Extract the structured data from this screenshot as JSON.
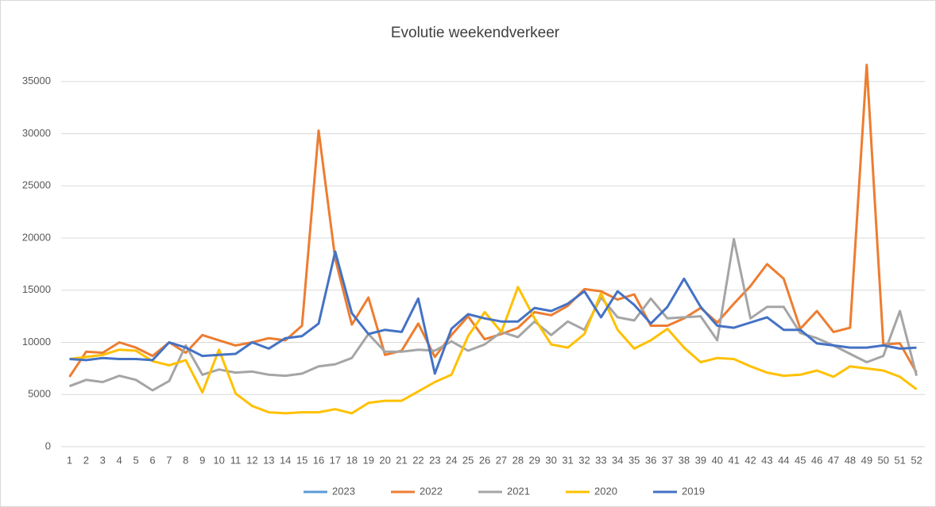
{
  "chart_data": {
    "type": "line",
    "title": "Evolutie weekendverkeer",
    "categories": [
      "1",
      "2",
      "3",
      "4",
      "5",
      "6",
      "7",
      "8",
      "9",
      "10",
      "11",
      "12",
      "13",
      "14",
      "15",
      "16",
      "17",
      "18",
      "19",
      "20",
      "21",
      "22",
      "23",
      "24",
      "25",
      "26",
      "27",
      "28",
      "29",
      "30",
      "31",
      "32",
      "33",
      "34",
      "35",
      "36",
      "37",
      "38",
      "39",
      "40",
      "41",
      "42",
      "43",
      "44",
      "45",
      "46",
      "47",
      "48",
      "49",
      "50",
      "51",
      "52"
    ],
    "ylim": [
      0,
      40000
    ],
    "yticks": [
      0,
      5000,
      10000,
      15000,
      20000,
      25000,
      30000,
      35000
    ],
    "grid": true,
    "legend": "bottom",
    "series": [
      {
        "name": "2023",
        "color": "#5b9bd5",
        "values": [
          null,
          null,
          null,
          null,
          null,
          null,
          null,
          null,
          null,
          null,
          null,
          null,
          null,
          null,
          null,
          null,
          null,
          null,
          null,
          null,
          null,
          null,
          null,
          null,
          null,
          null,
          null,
          null,
          null,
          null,
          null,
          null,
          null,
          null,
          null,
          null,
          null,
          null,
          null,
          null,
          null,
          null,
          null,
          null,
          null,
          null,
          null,
          null,
          null,
          null,
          null,
          null
        ]
      },
      {
        "name": "2022",
        "color": "#ed7d31",
        "values": [
          6700,
          9100,
          9000,
          10000,
          9500,
          8700,
          10000,
          9000,
          10700,
          10200,
          9700,
          10000,
          10400,
          10200,
          11600,
          30300,
          18000,
          11700,
          14300,
          8800,
          9200,
          11800,
          8600,
          10700,
          12500,
          10300,
          10800,
          11400,
          12900,
          12600,
          13500,
          15100,
          14900,
          14100,
          14600,
          11600,
          11600,
          12300,
          13300,
          11900,
          13700,
          15400,
          17500,
          16100,
          11300,
          13000,
          11000,
          11400,
          36600,
          9800,
          9900,
          7100
        ]
      },
      {
        "name": "2021",
        "color": "#a5a5a5",
        "values": [
          5800,
          6400,
          6200,
          6800,
          6400,
          5400,
          6300,
          9700,
          6900,
          7400,
          7100,
          7200,
          6900,
          6800,
          7000,
          7700,
          7900,
          8500,
          10800,
          9100,
          9100,
          9300,
          9200,
          10100,
          9200,
          9800,
          11000,
          10500,
          12000,
          10700,
          12000,
          11200,
          14300,
          12400,
          12100,
          14200,
          12300,
          12400,
          12500,
          10200,
          19900,
          12300,
          13400,
          13400,
          10900,
          10400,
          9700,
          8900,
          8100,
          8700,
          13000,
          6800
        ]
      },
      {
        "name": "2020",
        "color": "#ffc000",
        "values": [
          8400,
          8600,
          8800,
          9300,
          9200,
          8200,
          7800,
          8300,
          5200,
          9300,
          5100,
          3900,
          3300,
          3200,
          3300,
          3300,
          3600,
          3200,
          4200,
          4400,
          4400,
          5300,
          6200,
          6900,
          10600,
          12900,
          11000,
          15300,
          12300,
          9800,
          9500,
          10800,
          14700,
          11200,
          9400,
          10200,
          11300,
          9500,
          8100,
          8500,
          8400,
          7700,
          7100,
          6800,
          6900,
          7300,
          6700,
          7700,
          7500,
          7300,
          6700,
          5500
        ]
      },
      {
        "name": "2019",
        "color": "#4472c4",
        "values": [
          8400,
          8300,
          8500,
          8400,
          8400,
          8300,
          10000,
          9500,
          8700,
          8800,
          8900,
          10000,
          9400,
          10400,
          10600,
          11800,
          18700,
          12800,
          10800,
          11200,
          11000,
          14200,
          7000,
          11300,
          12700,
          12300,
          12000,
          12000,
          13300,
          13000,
          13700,
          14900,
          12400,
          14900,
          13600,
          11800,
          13400,
          16100,
          13400,
          11600,
          11400,
          11900,
          12400,
          11200,
          11200,
          9900,
          9700,
          9500,
          9500,
          9700,
          9400,
          9500
        ]
      }
    ]
  }
}
